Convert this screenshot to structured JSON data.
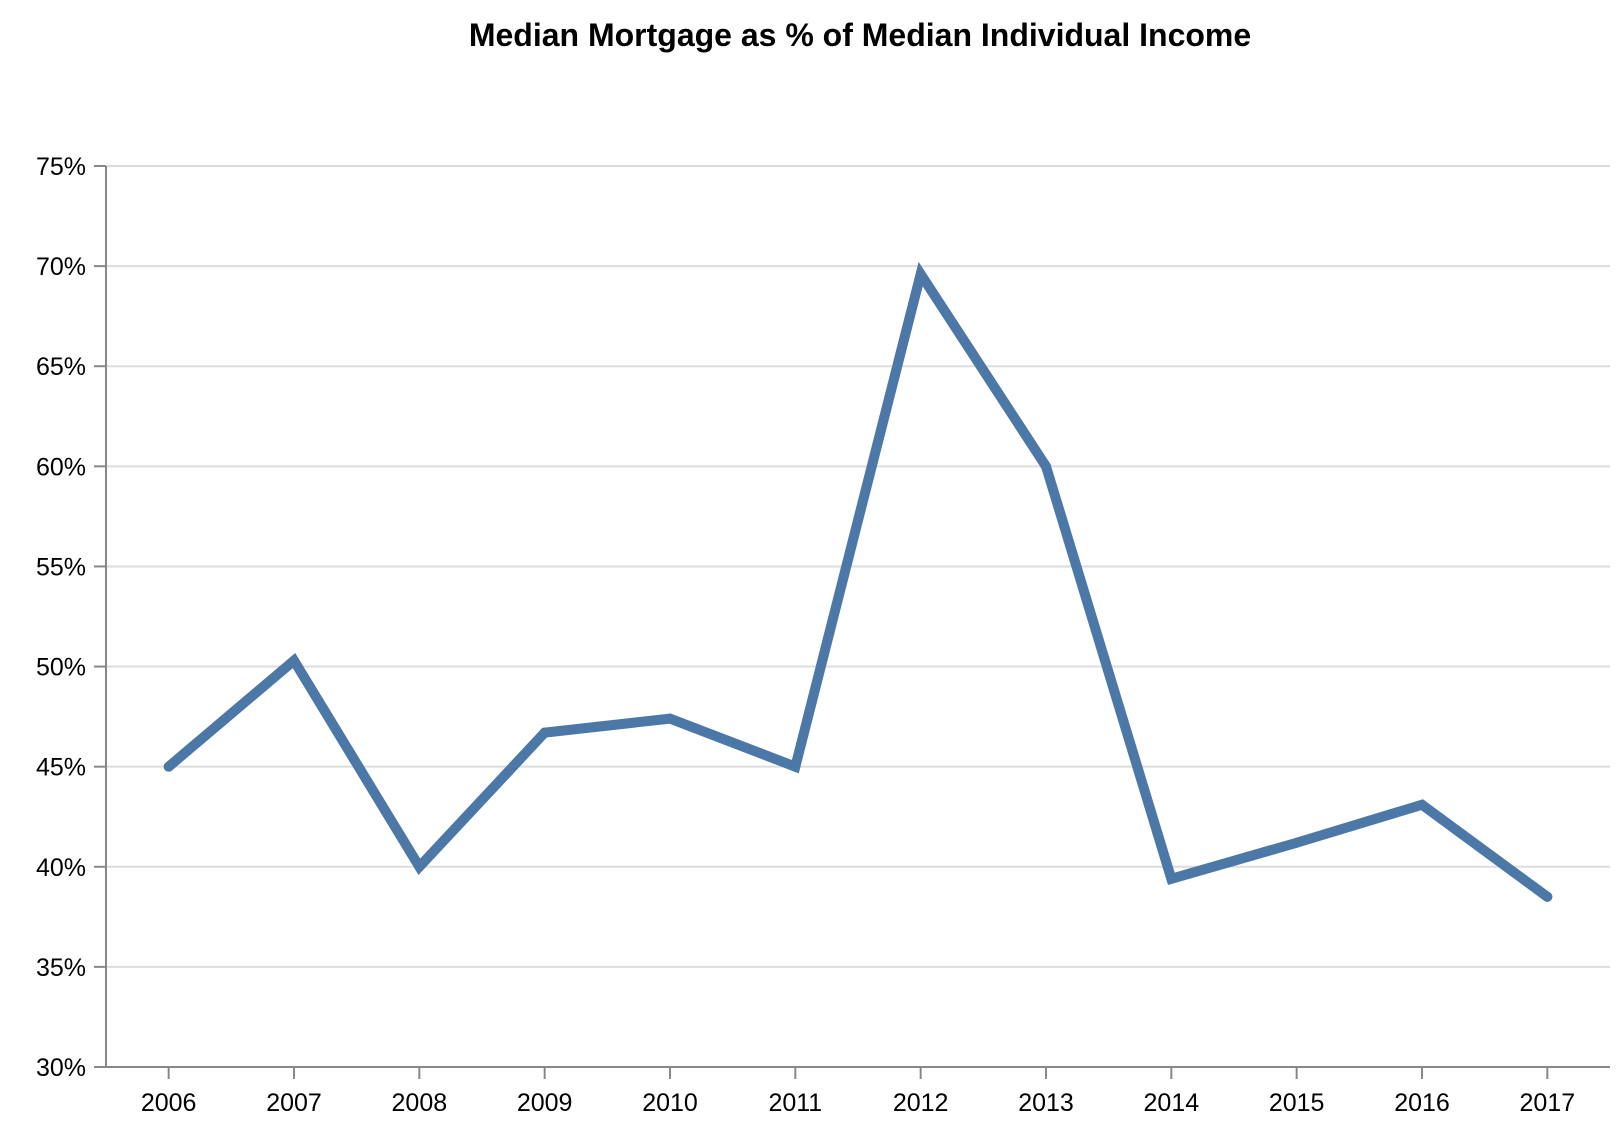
{
  "chart_data": {
    "type": "line",
    "title": "Median Mortgage as % of Median Individual Income",
    "xlabel": "",
    "ylabel": "",
    "categories": [
      "2006",
      "2007",
      "2008",
      "2009",
      "2010",
      "2011",
      "2012",
      "2013",
      "2014",
      "2015",
      "2016",
      "2017"
    ],
    "series": [
      {
        "values": [
          45.0,
          50.3,
          40.0,
          46.7,
          47.4,
          45.0,
          69.6,
          60.0,
          39.4,
          41.2,
          43.1,
          38.5
        ]
      }
    ],
    "y_ticks": [
      "30%",
      "35%",
      "40%",
      "45%",
      "50%",
      "55%",
      "60%",
      "65%",
      "70%",
      "75%"
    ],
    "y_tick_values": [
      30,
      35,
      40,
      45,
      50,
      55,
      60,
      65,
      70,
      75
    ],
    "ylim": [
      30,
      75
    ],
    "grid": true,
    "legend": "none",
    "line_color": "#4c78a8"
  }
}
